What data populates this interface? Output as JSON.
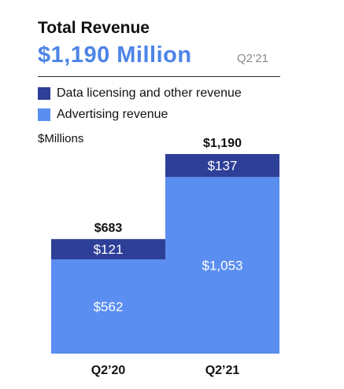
{
  "header": {
    "title": "Total Revenue",
    "headline": "$1,190 Million",
    "period": "Q2’21"
  },
  "legend": [
    {
      "label": "Data licensing and other revenue",
      "color": "#2e3f98"
    },
    {
      "label": "Advertising revenue",
      "color": "#5a8ef0"
    }
  ],
  "units": "$Millions",
  "chart_data": {
    "type": "bar",
    "stacked": true,
    "categories": [
      "Q2’20",
      "Q2’21"
    ],
    "series": [
      {
        "name": "Advertising revenue",
        "values": [
          562,
          1053
        ],
        "labels": [
          "$562",
          "$1,053"
        ],
        "color": "#5a8ef0"
      },
      {
        "name": "Data licensing and other revenue",
        "values": [
          121,
          137
        ],
        "labels": [
          "$121",
          "$137"
        ],
        "color": "#2e3f98"
      }
    ],
    "totals": [
      683,
      1190
    ],
    "total_labels": [
      "$683",
      "$1,190"
    ],
    "title": "Total Revenue",
    "ylabel": "$Millions",
    "ylim": [
      0,
      1190
    ],
    "grid": false,
    "legend_position": "top-left"
  }
}
